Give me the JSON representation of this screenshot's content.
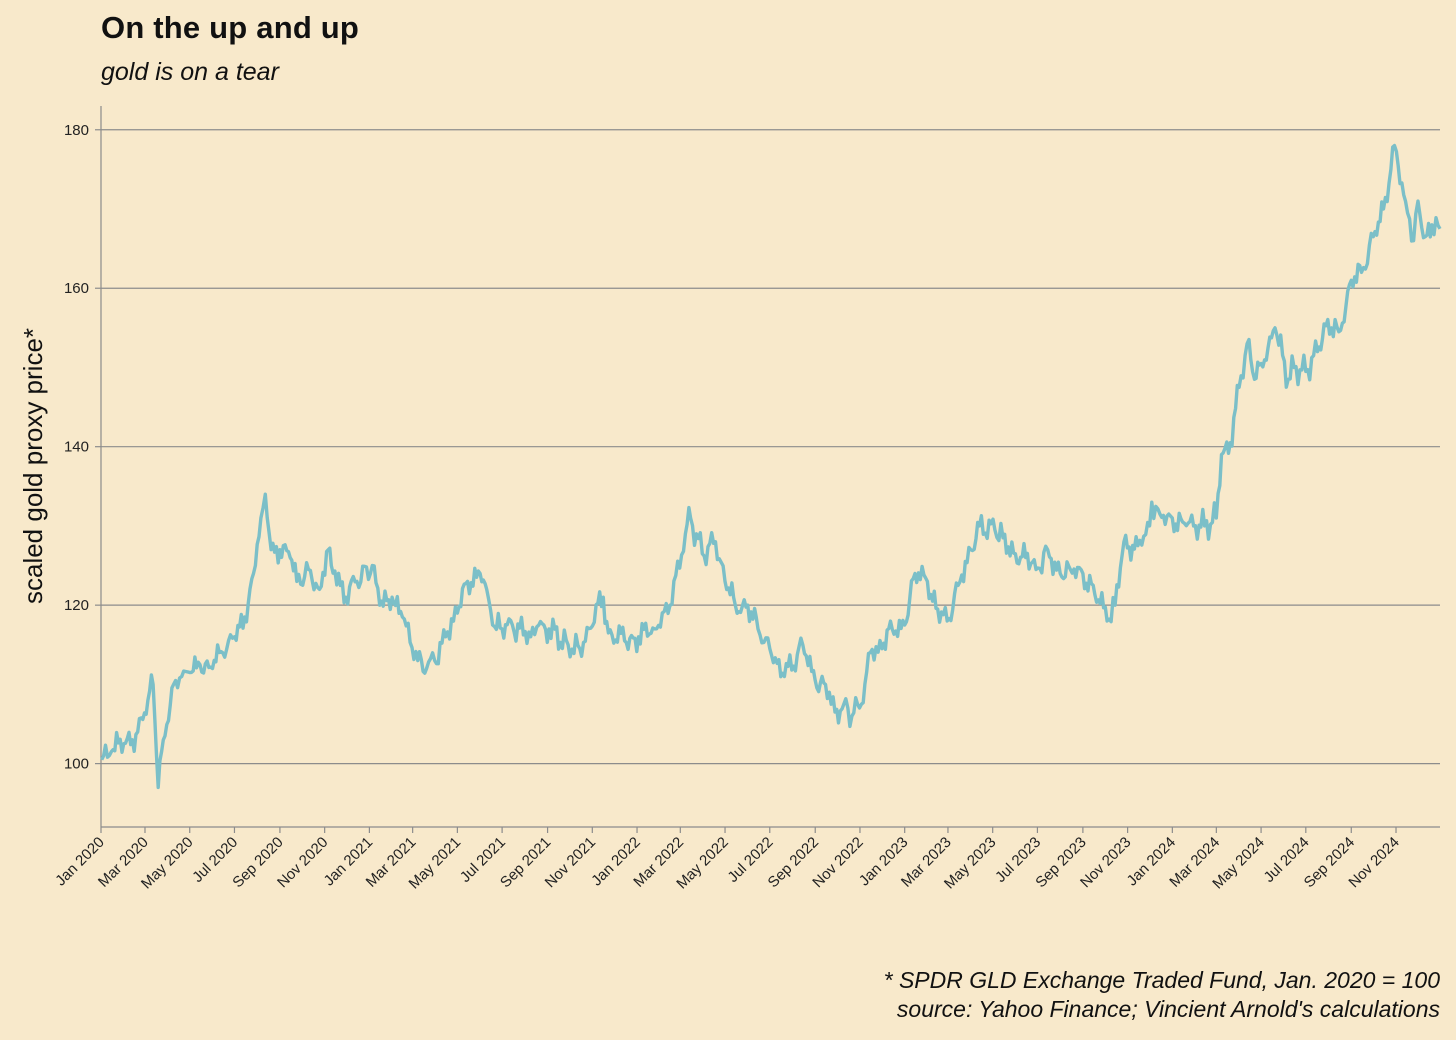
{
  "header": {
    "title": "On the up and up",
    "subtitle": "gold is on a tear"
  },
  "caption": {
    "line1": "* SPDR GLD Exchange Traded Fund, Jan. 2020 = 100",
    "line2": "source: Yahoo Finance; Vincient Arnold's calculations"
  },
  "colors": {
    "background": "#f8e9cb",
    "line": "#7bbfc8",
    "grid": "#8c8c8c"
  },
  "chart_data": {
    "type": "line",
    "title": "On the up and up",
    "subtitle": "gold is on a tear",
    "xlabel": "",
    "ylabel": "scaled gold proxy price*",
    "ylim": [
      92,
      183
    ],
    "xlim": [
      "2020-01-01",
      "2024-12-31"
    ],
    "grid": "horizontal",
    "y_ticks": [
      100,
      120,
      140,
      160,
      180
    ],
    "x_ticks": [
      "Jan 2020",
      "Mar 2020",
      "May 2020",
      "Jul 2020",
      "Sep 2020",
      "Nov 2020",
      "Jan 2021",
      "Mar 2021",
      "May 2021",
      "Jul 2021",
      "Sep 2021",
      "Nov 2021",
      "Jan 2022",
      "Mar 2022",
      "May 2022",
      "Jul 2022",
      "Sep 2022",
      "Nov 2022",
      "Jan 2023",
      "Mar 2023",
      "May 2023",
      "Jul 2023",
      "Sep 2023",
      "Nov 2023",
      "Jan 2024",
      "Mar 2024",
      "May 2024",
      "Jul 2024",
      "Sep 2024",
      "Nov 2024"
    ],
    "series": [
      {
        "x": [
          "2020-01-02",
          "2020-01-15",
          "2020-02-01",
          "2020-02-20",
          "2020-03-05",
          "2020-03-12",
          "2020-03-19",
          "2020-03-26",
          "2020-04-09",
          "2020-04-20",
          "2020-05-01",
          "2020-05-15",
          "2020-06-01",
          "2020-06-15",
          "2020-07-01",
          "2020-07-15",
          "2020-07-27",
          "2020-08-06",
          "2020-08-12",
          "2020-08-20",
          "2020-09-01",
          "2020-09-15",
          "2020-09-24",
          "2020-10-10",
          "2020-10-25",
          "2020-11-06",
          "2020-11-10",
          "2020-11-30",
          "2020-12-15",
          "2021-01-05",
          "2021-01-15",
          "2021-02-01",
          "2021-02-15",
          "2021-03-08",
          "2021-03-20",
          "2021-03-31",
          "2021-04-15",
          "2021-05-01",
          "2021-05-15",
          "2021-06-01",
          "2021-06-10",
          "2021-06-18",
          "2021-07-01",
          "2021-07-15",
          "2021-08-09",
          "2021-08-20",
          "2021-09-03",
          "2021-09-29",
          "2021-10-15",
          "2021-11-16",
          "2021-11-23",
          "2021-12-15",
          "2022-01-03",
          "2022-01-25",
          "2022-02-15",
          "2022-03-08",
          "2022-03-15",
          "2022-03-31",
          "2022-04-18",
          "2022-05-01",
          "2022-05-15",
          "2022-06-01",
          "2022-06-15",
          "2022-07-01",
          "2022-07-21",
          "2022-08-15",
          "2022-09-01",
          "2022-09-15",
          "2022-09-28",
          "2022-10-10",
          "2022-10-21",
          "2022-11-03",
          "2022-11-15",
          "2022-12-01",
          "2022-12-15",
          "2023-01-01",
          "2023-01-15",
          "2023-02-01",
          "2023-02-15",
          "2023-02-28",
          "2023-03-15",
          "2023-04-01",
          "2023-04-13",
          "2023-05-04",
          "2023-05-15",
          "2023-06-01",
          "2023-06-15",
          "2023-06-29",
          "2023-07-15",
          "2023-08-01",
          "2023-08-15",
          "2023-09-01",
          "2023-09-15",
          "2023-10-04",
          "2023-10-15",
          "2023-10-27",
          "2023-11-15",
          "2023-12-01",
          "2023-12-04",
          "2023-12-15",
          "2024-01-01",
          "2024-01-15",
          "2024-02-14",
          "2024-03-01",
          "2024-03-08",
          "2024-03-20",
          "2024-04-01",
          "2024-04-12",
          "2024-04-22",
          "2024-05-01",
          "2024-05-20",
          "2024-06-07",
          "2024-06-15",
          "2024-07-01",
          "2024-07-17",
          "2024-07-26",
          "2024-08-15",
          "2024-09-01",
          "2024-09-15",
          "2024-10-01",
          "2024-10-15",
          "2024-10-30",
          "2024-11-14",
          "2024-11-25",
          "2024-12-01",
          "2024-12-11",
          "2024-12-20",
          "2024-12-31"
        ],
        "y": [
          100.5,
          101.5,
          102.5,
          104,
          108,
          110,
          97,
          103,
          110,
          111,
          111.5,
          112.5,
          112,
          114,
          116,
          118.5,
          124,
          131,
          134,
          127,
          127,
          126,
          123,
          124.5,
          122,
          127,
          125,
          121,
          123,
          125,
          120,
          121,
          118.5,
          113,
          112,
          113,
          116,
          119,
          123,
          124,
          122,
          117.5,
          117,
          117.5,
          116,
          117.5,
          117,
          115,
          114.5,
          121,
          116.5,
          115.5,
          116,
          117,
          120,
          129,
          131,
          126.5,
          128,
          123,
          120,
          120,
          117,
          114.5,
          111,
          115,
          110.5,
          110,
          106.5,
          107.5,
          106,
          107.5,
          114,
          114.5,
          117,
          117.5,
          124,
          123,
          119.5,
          118,
          122.5,
          127,
          130,
          129.5,
          128.5,
          126.5,
          126,
          124.5,
          127,
          124,
          124.5,
          124,
          122.5,
          118,
          120,
          128,
          127.5,
          130,
          133,
          131.5,
          131,
          130.5,
          130,
          131,
          139,
          140.5,
          147.5,
          153,
          148.5,
          150.5,
          155,
          148.5,
          150,
          149.5,
          152,
          155.5,
          154.5,
          161,
          162,
          166.5,
          170,
          178,
          171,
          166,
          171,
          166.5,
          168,
          167.5
        ]
      }
    ]
  }
}
